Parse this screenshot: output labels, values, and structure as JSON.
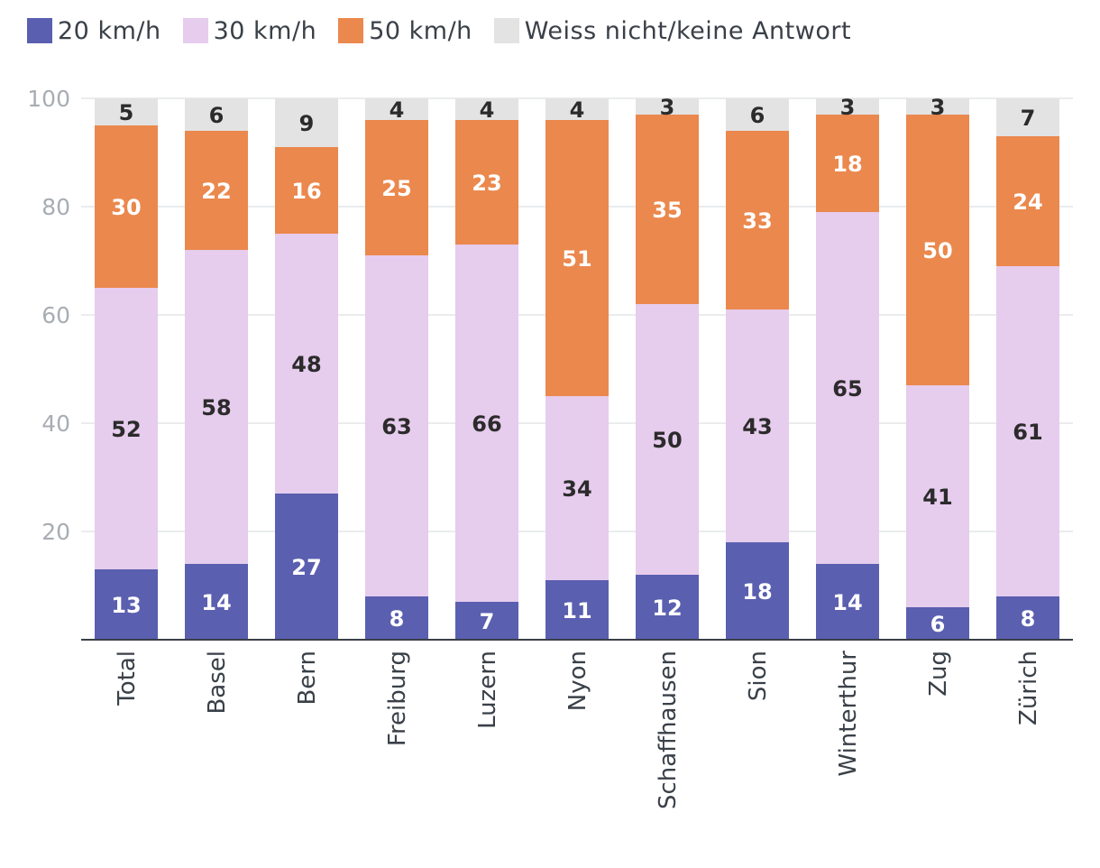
{
  "chart_data": {
    "type": "bar",
    "stacked": true,
    "categories": [
      "Total",
      "Basel",
      "Bern",
      "Freiburg",
      "Luzern",
      "Nyon",
      "Schaffhausen",
      "Sion",
      "Winterthur",
      "Zug",
      "Zürich"
    ],
    "series": [
      {
        "name": "20 km/h",
        "color": "#5a5fb0",
        "label_color": "#ffffff",
        "values": [
          13,
          14,
          27,
          8,
          7,
          11,
          12,
          18,
          14,
          6,
          8
        ]
      },
      {
        "name": "30 km/h",
        "color": "#e6cced",
        "label_color": "#2b2b2b",
        "values": [
          52,
          58,
          48,
          63,
          66,
          34,
          50,
          43,
          65,
          41,
          61
        ]
      },
      {
        "name": "50 km/h",
        "color": "#eb884d",
        "label_color": "#ffffff",
        "values": [
          30,
          22,
          16,
          25,
          23,
          51,
          35,
          33,
          18,
          50,
          24
        ]
      },
      {
        "name": "Weiss nicht/keine Antwort",
        "color": "#e3e3e3",
        "label_color": "#2b2b2b",
        "values": [
          5,
          6,
          9,
          4,
          4,
          4,
          3,
          6,
          3,
          3,
          7
        ]
      }
    ],
    "yticks": [
      100,
      80,
      60,
      40,
      20
    ],
    "ylim": [
      0,
      100
    ],
    "legend": "top-left",
    "grid": true
  }
}
